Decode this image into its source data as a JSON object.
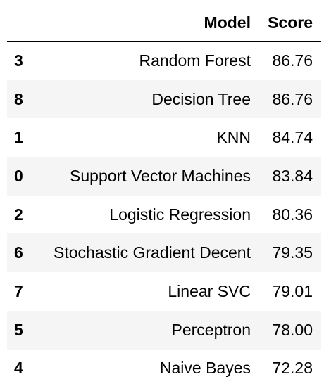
{
  "table": {
    "columns": [
      "Model",
      "Score"
    ],
    "rows": [
      {
        "index": "3",
        "model": "Random Forest",
        "score": "86.76"
      },
      {
        "index": "8",
        "model": "Decision Tree",
        "score": "86.76"
      },
      {
        "index": "1",
        "model": "KNN",
        "score": "84.74"
      },
      {
        "index": "0",
        "model": "Support Vector Machines",
        "score": "83.84"
      },
      {
        "index": "2",
        "model": "Logistic Regression",
        "score": "80.36"
      },
      {
        "index": "6",
        "model": "Stochastic Gradient Decent",
        "score": "79.35"
      },
      {
        "index": "7",
        "model": "Linear SVC",
        "score": "79.01"
      },
      {
        "index": "5",
        "model": "Perceptron",
        "score": "78.00"
      },
      {
        "index": "4",
        "model": "Naive Bayes",
        "score": "72.28"
      }
    ]
  },
  "colors": {
    "stripe": "#f5f5f5",
    "text": "#000000",
    "header_rule": "#000000"
  }
}
